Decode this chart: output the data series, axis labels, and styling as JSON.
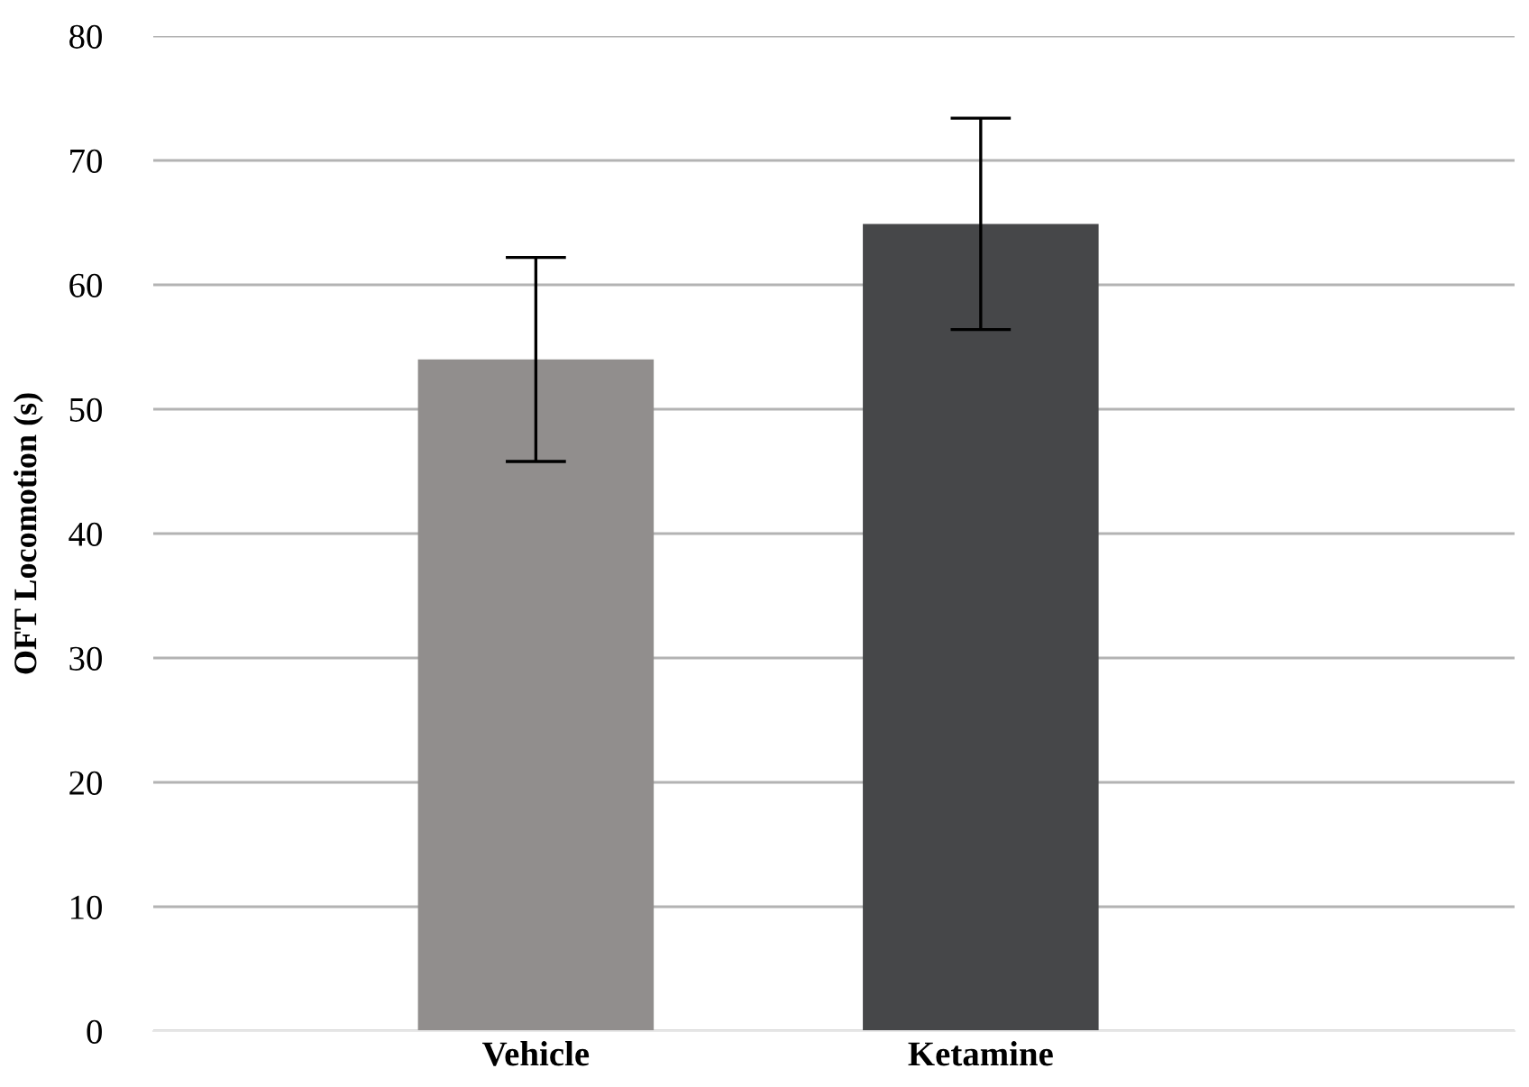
{
  "chart_data": {
    "type": "bar",
    "ylabel": "OFT Locomotion (s)",
    "categories": [
      "Vehicle",
      "Ketamine"
    ],
    "values": [
      54.0,
      64.9
    ],
    "errors": [
      8.2,
      8.5
    ],
    "colors": [
      "#918e8d",
      "#464749"
    ],
    "ylim": [
      0,
      80
    ],
    "yticks": [
      0,
      10,
      20,
      30,
      40,
      50,
      60,
      70,
      80
    ],
    "grid": "y"
  }
}
